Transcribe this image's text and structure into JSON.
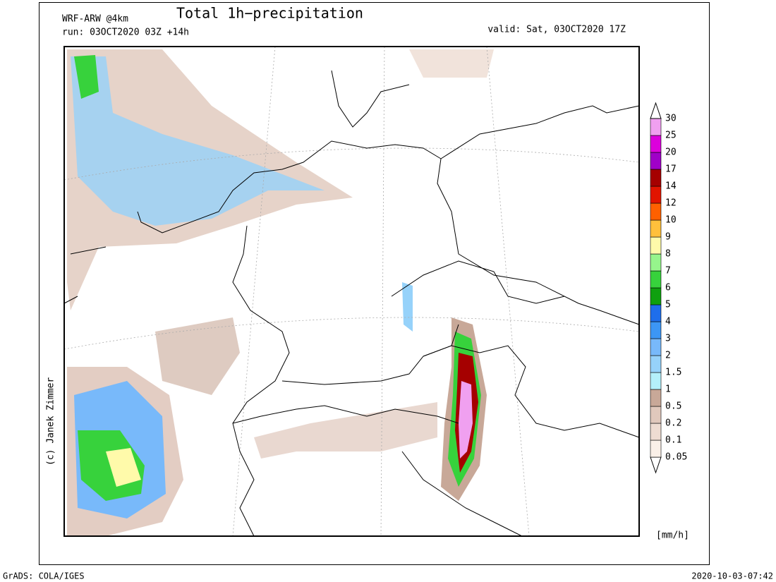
{
  "header": {
    "model": "WRF-ARW @4km",
    "title": "Total 1h−precipitation",
    "run": "run: 03OCT2020 03Z +14h",
    "valid": "valid: Sat, 03OCT2020 17Z"
  },
  "credit": "(c) Janek Zimmer",
  "colorbar": {
    "levels": [
      0.05,
      0.1,
      0.2,
      0.5,
      1,
      1.5,
      2,
      3,
      4,
      5,
      6,
      7,
      8,
      9,
      10,
      12,
      14,
      17,
      20,
      25,
      30
    ],
    "colors": [
      "#faf0e8",
      "#eedcd2",
      "#e0c8bc",
      "#c8a898",
      "#b4f0fa",
      "#96d2fa",
      "#78b9fa",
      "#3c96f5",
      "#1e6eeb",
      "#0fa00f",
      "#37d23c",
      "#96f58c",
      "#fffaaa",
      "#ffc03c",
      "#ff6000",
      "#e11400",
      "#a50000",
      "#a000c8",
      "#dc00dc",
      "#f0a0f0"
    ],
    "unit": "[mm/h]"
  },
  "footer": {
    "left": "GrADS: COLA/IGES",
    "right": "2020-10-03-07:42"
  }
}
